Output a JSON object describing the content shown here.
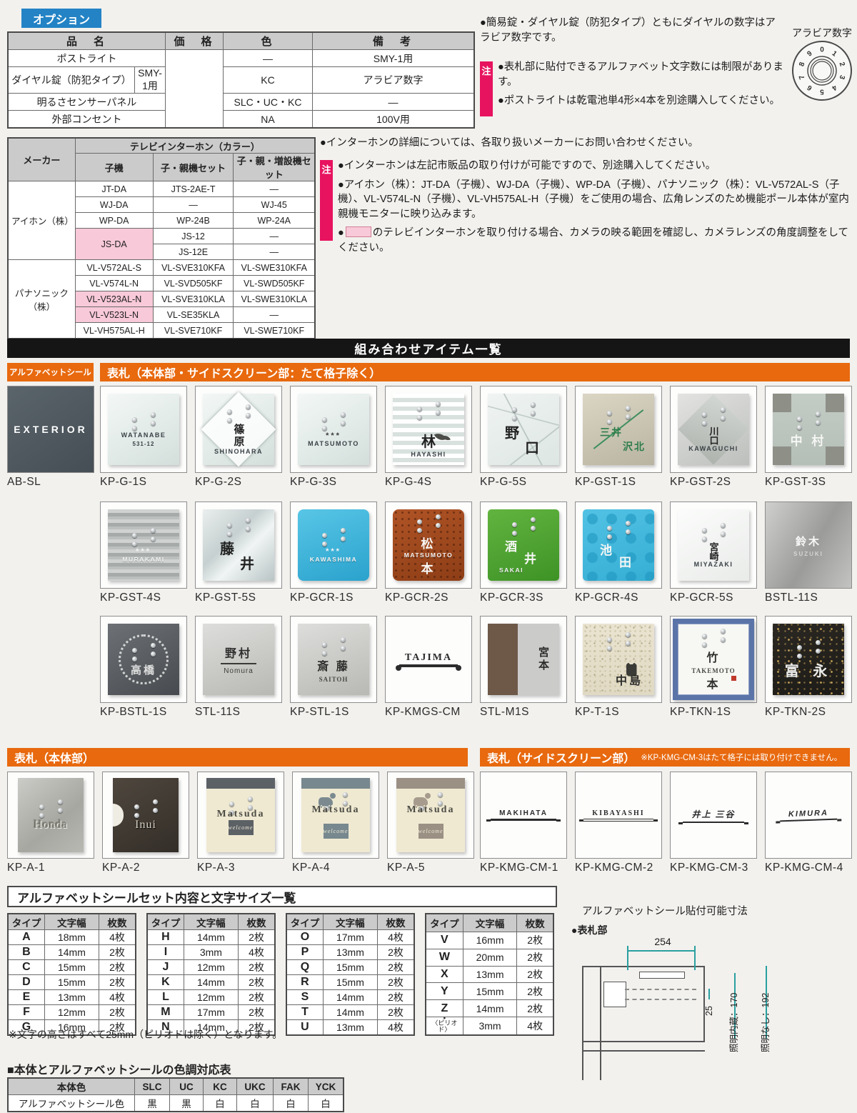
{
  "option": {
    "badge": "オプション",
    "headers": {
      "name": "品　名",
      "price": "価　格",
      "color": "色",
      "note": "備　考"
    },
    "rows": [
      {
        "name": "ポストライト",
        "sub": "",
        "color": "—",
        "note": "SMY-1用"
      },
      {
        "name": "ダイヤル錠（防犯タイプ）",
        "sub": "SMY-1用",
        "color": "KC",
        "note": "アラビア数字"
      },
      {
        "name": "明るさセンサーパネル",
        "sub": "",
        "color": "SLC・UC・KC",
        "note": "—"
      },
      {
        "name": "外部コンセント",
        "sub": "",
        "color": "NA",
        "note": "100V用"
      }
    ]
  },
  "top_notes": {
    "b1": "●簡易錠・ダイヤル錠（防犯タイプ）ともにダイヤルの数字はアラビア数字です。",
    "badge": "注",
    "items": [
      "●表札部に貼付できるアルファベット文字数には制限があります。",
      "●ポストライトは乾電池単4形×4本を別途購入してください。"
    ]
  },
  "dial": {
    "label": "アラビア数字",
    "digits": [
      "0",
      "1",
      "2",
      "3",
      "4",
      "5",
      "6",
      "7",
      "8",
      "9"
    ]
  },
  "intercom": {
    "col_maker": "メーカー",
    "col_group": "テレビインターホン（カラー）",
    "cols": [
      "子機",
      "子・親機セット",
      "子・親・増設機セット"
    ],
    "makers": [
      {
        "name": "アイホン（株）",
        "rows": [
          {
            "cells": [
              {
                "t": "JT-DA"
              },
              {
                "t": "JTS-2AE-T"
              },
              {
                "t": "—"
              }
            ]
          },
          {
            "cells": [
              {
                "t": "WJ-DA"
              },
              {
                "t": "—"
              },
              {
                "t": "WJ-45"
              }
            ]
          },
          {
            "cells": [
              {
                "t": "WP-DA"
              },
              {
                "t": "WP-24B"
              },
              {
                "t": "WP-24A"
              }
            ]
          },
          {
            "cells": [
              {
                "t": "JS-DA",
                "pink": true,
                "rowspan": 2
              },
              {
                "t": "JS-12"
              },
              {
                "t": "—"
              }
            ]
          },
          {
            "cells": [
              {
                "t": "JS-12E"
              },
              {
                "t": "—"
              }
            ]
          }
        ]
      },
      {
        "name": "パナソニック（株）",
        "rows": [
          {
            "cells": [
              {
                "t": "VL-V572AL-S"
              },
              {
                "t": "VL-SVE310KFA"
              },
              {
                "t": "VL-SWE310KFA"
              }
            ]
          },
          {
            "cells": [
              {
                "t": "VL-V574L-N"
              },
              {
                "t": "VL-SVD505KF"
              },
              {
                "t": "VL-SWD505KF"
              }
            ]
          },
          {
            "cells": [
              {
                "t": "VL-V523AL-N",
                "pink": true
              },
              {
                "t": "VL-SVE310KLA"
              },
              {
                "t": "VL-SWE310KLA"
              }
            ]
          },
          {
            "cells": [
              {
                "t": "VL-V523L-N",
                "pink": true
              },
              {
                "t": "VL-SE35KLA"
              },
              {
                "t": "—"
              }
            ]
          },
          {
            "cells": [
              {
                "t": "VL-VH575AL-H"
              },
              {
                "t": "VL-SVE710KF"
              },
              {
                "t": "VL-SWE710KF"
              }
            ]
          }
        ]
      }
    ]
  },
  "intercom_notes": {
    "b1": "●インターホンの詳細については、各取り扱いメーカーにお問い合わせください。",
    "badge": "注",
    "n1": "●インターホンは左記市販品の取り付けが可能ですので、別途購入してください。",
    "n2": "●アイホン（株）：JT-DA（子機）、WJ-DA（子機）、WP-DA（子機）、パナソニック（株）：VL-V572AL-S（子機）、VL-V574L-N（子機）、VL-VH575AL-H（子機）をご使用の場合、広角レンズのため機能ポール本体が室内親機モニターに映り込みます。",
    "n3_bullet": "●",
    "n3": "のテレビインターホンを取り付ける場合、カメラの映る範囲を確認し、カメラレンズの角度調整をしてください。"
  },
  "combo": {
    "title": "組み合わせアイテム一覧",
    "sec_alpha": "アルファベットシール",
    "sec_plates": "表札（本体部・サイドスクリーン部：たて格子除く）",
    "sec_main": "表札（本体部）",
    "sec_side": "表札（サイドスクリーン部）",
    "side_note": "※KP-KMG-CM-3はたて格子には取り付けできません。"
  },
  "products": {
    "absl": {
      "code": "AB-SL",
      "cls": "pl-absl full",
      "pins": false,
      "parts": [
        {
          "t": "EXTERIOR",
          "c": "t-exterior"
        }
      ]
    },
    "row1": [
      {
        "code": "KP-G-1S",
        "cls": "pl-frost",
        "pins": true,
        "parts": [
          {
            "t": "WATANABE",
            "c": "t-en"
          },
          {
            "t": "531-12",
            "c": "t-en-sm"
          }
        ]
      },
      {
        "code": "KP-G-2S",
        "cls": "pl-frost pl-diamond",
        "pins": true,
        "parts": [
          {
            "t": "篠原",
            "c": "t-kv"
          },
          {
            "t": "SHINOHARA",
            "c": "t-en"
          }
        ]
      },
      {
        "code": "KP-G-3S",
        "cls": "pl-frost",
        "pins": true,
        "parts": [
          {
            "t": "***",
            "c": "t-stars"
          },
          {
            "t": "MATSUMOTO",
            "c": "t-en"
          }
        ]
      },
      {
        "code": "KP-G-4S",
        "cls": "pl-frost pl-hstripes",
        "pins": true,
        "parts": [
          {
            "c": "icon-leaf",
            "n": "leaf-icon"
          },
          {
            "t": "林",
            "c": "t-k-lg"
          },
          {
            "t": "HAYASHI",
            "c": "t-en"
          }
        ]
      },
      {
        "code": "KP-G-5S",
        "cls": "pl-xlines",
        "pins": true,
        "parts": [
          {
            "t": "野",
            "c": "t-k-lg sl"
          },
          {
            "t": "口",
            "c": "t-k-lg sr2"
          }
        ]
      },
      {
        "code": "KP-GST-1S",
        "cls": "pl-champagne pl-diagline",
        "pins": true,
        "parts": [
          {
            "t": "三井",
            "c": "t-k-gr sl"
          },
          {
            "t": "沢北",
            "c": "t-k-gr se"
          }
        ]
      },
      {
        "code": "KP-GST-2S",
        "cls": "pl-silver pl-diamond2",
        "pins": true,
        "parts": [
          {
            "t": "川口",
            "c": "t-kv-sm"
          },
          {
            "t": "KAWAGUCHI",
            "c": "t-en"
          }
        ]
      },
      {
        "code": "KP-GST-3S",
        "cls": "pl-corners",
        "pins": true,
        "parts": [
          {
            "t": "中 村",
            "c": "t-k-white"
          }
        ]
      }
    ],
    "row2": [
      {
        "code": "KP-GST-4S",
        "cls": "pl-ridge",
        "pins": true,
        "parts": [
          {
            "t": "***",
            "c": "t-stars-w"
          },
          {
            "t": "MURAKAMI",
            "c": "t-en-w"
          }
        ]
      },
      {
        "code": "KP-GST-5S",
        "cls": "pl-mirror pl-xlines",
        "pins": true,
        "parts": [
          {
            "t": "藤",
            "c": "t-k-lg sl"
          },
          {
            "t": "井",
            "c": "t-k-lg sr2"
          }
        ]
      },
      {
        "code": "KP-GCR-1S",
        "cls": "pl-blueglass",
        "pins": true,
        "parts": [
          {
            "t": "***",
            "c": "t-stars-w"
          },
          {
            "t": "KAWASHIMA",
            "c": "t-en-w"
          }
        ]
      },
      {
        "code": "KP-GCR-2S",
        "cls": "pl-rust",
        "pins": true,
        "parts": [
          {
            "t": "松",
            "c": "t-k-white"
          },
          {
            "t": "MATSUMOTO",
            "c": "t-en-w"
          },
          {
            "t": "本",
            "c": "t-k-white"
          }
        ]
      },
      {
        "code": "KP-GCR-3S",
        "cls": "pl-green",
        "pins": true,
        "parts": [
          {
            "t": "酒",
            "c": "t-k-white sl"
          },
          {
            "t": "井",
            "c": "t-k-white sr2"
          },
          {
            "t": "SAKAI",
            "c": "t-en-w sl2"
          }
        ]
      },
      {
        "code": "KP-GCR-4S",
        "cls": "pl-aqua",
        "pins": true,
        "parts": [
          {
            "t": "池",
            "c": "t-k-white sl"
          },
          {
            "t": "田",
            "c": "t-k-white sr2"
          }
        ]
      },
      {
        "code": "KP-GCR-5S",
        "cls": "pl-clear",
        "pins": true,
        "parts": [
          {
            "t": "宮崎",
            "c": "t-kv-sm"
          },
          {
            "t": "MIYAZAKI",
            "c": "t-en"
          }
        ]
      },
      {
        "code": "BSTL-11S",
        "cls": "pl-steel full",
        "pins": false,
        "parts": [
          {
            "t": "鈴木",
            "c": "t-k-etch"
          },
          {
            "t": "SUZUKI",
            "c": "t-en-etch"
          }
        ]
      }
    ],
    "row3": [
      {
        "code": "KP-BSTL-1S",
        "cls": "pl-gunmetal wreath",
        "pins": true,
        "parts": [
          {
            "t": "高橋",
            "c": "t-k-etch3"
          }
        ]
      },
      {
        "code": "STL-11S",
        "cls": "pl-steel2",
        "pins": false,
        "parts": [
          {
            "t": "野村",
            "c": "t-k-dk t-ul"
          },
          {
            "t": "Nomura",
            "c": "t-en-dk"
          }
        ]
      },
      {
        "code": "KP-STL-1S",
        "cls": "pl-steel2",
        "pins": true,
        "parts": [
          {
            "t": "斎 藤",
            "c": "t-k-dk"
          },
          {
            "t": "SAITOH",
            "c": "t-en-serif"
          }
        ]
      },
      {
        "code": "KP-KMGS-CM",
        "cls": "pl-white",
        "pins": false,
        "parts": [
          {
            "t": "TAJIMA",
            "c": "t-iron"
          }
        ]
      },
      {
        "code": "STL-M1S",
        "cls": "pl-woodsteel",
        "pins": false,
        "parts": [
          {
            "t": "宮本",
            "c": "t-kv-dk se"
          }
        ]
      },
      {
        "code": "KP-T-1S",
        "cls": "pl-stone",
        "pins": true,
        "parts": [
          {
            "c": "icon-owl",
            "n": "owl-icon"
          },
          {
            "t": "中島",
            "c": "t-k-dk sr"
          }
        ]
      },
      {
        "code": "KP-TKN-1S",
        "cls": "pl-tkn1 seal",
        "pins": true,
        "parts": [
          {
            "t": "竹",
            "c": "t-k-dk"
          },
          {
            "t": "TAKEMOTO",
            "c": "t-en-serif"
          },
          {
            "t": "本",
            "c": "t-k-dk"
          }
        ]
      },
      {
        "code": "KP-TKN-2S",
        "cls": "pl-blackgold",
        "pins": true,
        "parts": [
          {
            "t": "富 永",
            "c": "t-k-white-lg"
          }
        ]
      }
    ],
    "main": [
      {
        "code": "KP-A-1",
        "cls": "pl-metal",
        "pins": true,
        "parts": [
          {
            "t": "Honda",
            "c": "t-serif-emboss"
          }
        ]
      },
      {
        "code": "KP-A-2",
        "cls": "pl-bronze notch",
        "pins": true,
        "parts": [
          {
            "t": "Inui",
            "c": "t-serif-emboss-w"
          }
        ]
      },
      {
        "code": "KP-A-3",
        "cls": "pl-bands pa3",
        "pins": true,
        "parts": [
          {
            "t": "Matsuda",
            "c": "t-matsuda"
          },
          {
            "t": "welcome",
            "c": "band-script"
          }
        ]
      },
      {
        "code": "KP-A-4",
        "cls": "pl-bands pa4",
        "pins": true,
        "parts": [
          {
            "t": "Matsuda",
            "c": "t-matsuda"
          },
          {
            "c": "icon-pet",
            "n": "dog-icon"
          },
          {
            "t": "welcome",
            "c": "band-script"
          }
        ]
      },
      {
        "code": "KP-A-5",
        "cls": "pl-bands pa5",
        "pins": true,
        "parts": [
          {
            "t": "Matsuda",
            "c": "t-matsuda"
          },
          {
            "c": "icon-pet icon-cat",
            "n": "cat-icon"
          },
          {
            "t": "welcome",
            "c": "band-script"
          }
        ]
      }
    ],
    "side": [
      {
        "code": "KP-KMG-CM-1",
        "cls": "pl-white",
        "pins": false,
        "parts": [
          {
            "t": "MAKIHATA",
            "c": "t-iron2"
          }
        ]
      },
      {
        "code": "KP-KMG-CM-2",
        "cls": "pl-white",
        "pins": false,
        "parts": [
          {
            "t": "KIBAYASHI",
            "c": "t-iron2 serif"
          }
        ]
      },
      {
        "code": "KP-KMG-CM-3",
        "cls": "pl-white",
        "pins": false,
        "parts": [
          {
            "t": "井上 三谷",
            "c": "t-iron2 script"
          }
        ]
      },
      {
        "code": "KP-KMG-CM-4",
        "cls": "pl-white",
        "pins": false,
        "parts": [
          {
            "t": "KIMURA",
            "c": "t-iron2 kimura"
          }
        ]
      }
    ]
  },
  "sizes": {
    "title": "アルファベットシールセット内容と文字サイズ一覧",
    "headers": [
      "タイプ",
      "文字幅",
      "枚数"
    ],
    "tables": [
      [
        {
          "ty": "A",
          "w": "18mm",
          "n": "4枚"
        },
        {
          "ty": "B",
          "w": "14mm",
          "n": "2枚"
        },
        {
          "ty": "C",
          "w": "15mm",
          "n": "2枚"
        },
        {
          "ty": "D",
          "w": "15mm",
          "n": "2枚"
        },
        {
          "ty": "E",
          "w": "13mm",
          "n": "4枚"
        },
        {
          "ty": "F",
          "w": "12mm",
          "n": "2枚"
        },
        {
          "ty": "G",
          "w": "16mm",
          "n": "2枚"
        }
      ],
      [
        {
          "ty": "H",
          "w": "14mm",
          "n": "2枚"
        },
        {
          "ty": "I",
          "w": "3mm",
          "n": "4枚"
        },
        {
          "ty": "J",
          "w": "12mm",
          "n": "2枚"
        },
        {
          "ty": "K",
          "w": "14mm",
          "n": "2枚"
        },
        {
          "ty": "L",
          "w": "12mm",
          "n": "2枚"
        },
        {
          "ty": "M",
          "w": "17mm",
          "n": "2枚"
        },
        {
          "ty": "N",
          "w": "14mm",
          "n": "2枚"
        }
      ],
      [
        {
          "ty": "O",
          "w": "17mm",
          "n": "4枚"
        },
        {
          "ty": "P",
          "w": "13mm",
          "n": "2枚"
        },
        {
          "ty": "Q",
          "w": "15mm",
          "n": "2枚"
        },
        {
          "ty": "R",
          "w": "15mm",
          "n": "2枚"
        },
        {
          "ty": "S",
          "w": "14mm",
          "n": "2枚"
        },
        {
          "ty": "T",
          "w": "14mm",
          "n": "2枚"
        },
        {
          "ty": "U",
          "w": "13mm",
          "n": "4枚"
        }
      ],
      [
        {
          "ty": "V",
          "w": "16mm",
          "n": "2枚"
        },
        {
          "ty": "W",
          "w": "20mm",
          "n": "2枚"
        },
        {
          "ty": "X",
          "w": "13mm",
          "n": "2枚"
        },
        {
          "ty": "Y",
          "w": "15mm",
          "n": "2枚"
        },
        {
          "ty": "Z",
          "w": "14mm",
          "n": "2枚"
        },
        {
          "ty": "〈ピリオド〉",
          "dot": true,
          "w": "3mm",
          "n": "4枚"
        }
      ]
    ],
    "footnote": "※文字の高さはすべて25mm（ピリオドは除く）となります。"
  },
  "dims": {
    "title": "アルファベットシール貼付可能寸法",
    "sub": "●表札部",
    "w": "254",
    "h_small": "25",
    "with_light": "照明内蔵：170",
    "no_light": "照明なし：192"
  },
  "color_map": {
    "title": "■本体とアルファベットシールの色調対応表",
    "header": [
      "本体色",
      "SLC",
      "UC",
      "KC",
      "UKC",
      "FAK",
      "YCK"
    ],
    "row_label": "アルファベットシール色",
    "values": [
      "黒",
      "黒",
      "白",
      "白",
      "白",
      "白"
    ]
  }
}
